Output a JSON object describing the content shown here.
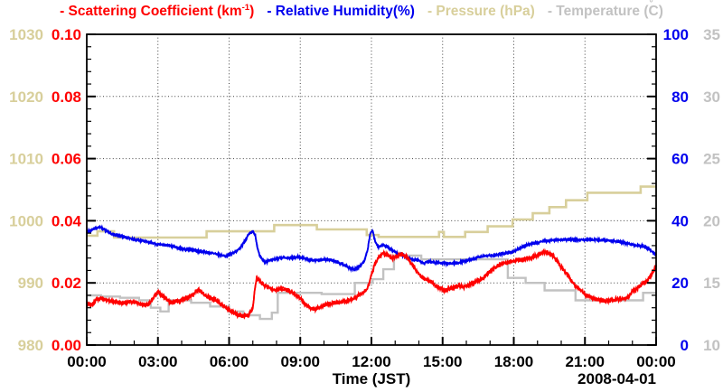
{
  "legend": {
    "scattering": {
      "pre": "- Scattering Coefficient (km",
      "sup": "-1",
      "post": ")"
    },
    "humidity": {
      "label": "- Relative Humidity(%)"
    },
    "pressure": {
      "label": "- Pressure (hPa)"
    },
    "temperature": {
      "pre": "- Temperature (",
      "ring": "°",
      "c": "C",
      "post": ")"
    }
  },
  "chart_data": {
    "type": "line",
    "title": "",
    "x_axis": {
      "label": "Time (JST)",
      "date_label": "2008-04-01",
      "min_hours": 0,
      "max_hours": 24,
      "major_tick_hours": 3,
      "minor_tick_hours": 1,
      "tick_labels": [
        "00:00",
        "03:00",
        "06:00",
        "09:00",
        "12:00",
        "15:00",
        "18:00",
        "21:00",
        "00:00"
      ]
    },
    "grid": {
      "dotted": true,
      "color": "#444444"
    },
    "y_axes": [
      {
        "id": "pressure",
        "label": "Pressure (hPa)",
        "color": "#d8cf9b",
        "min": 980,
        "max": 1030,
        "major_tick": 10,
        "minors_per_major": 4,
        "side": "left-outer",
        "tick_labels": [
          "980",
          "990",
          "1000",
          "1010",
          "1020",
          "1030"
        ]
      },
      {
        "id": "scattering",
        "label": "Scattering Coefficient (km-1)",
        "color": "#ff0000",
        "min": 0,
        "max": 0.1,
        "major_tick": 0.02,
        "minors_per_major": 4,
        "side": "left-inner",
        "tick_labels": [
          "0.00",
          "0.02",
          "0.04",
          "0.06",
          "0.08",
          "0.10"
        ]
      },
      {
        "id": "humidity",
        "label": "Relative Humidity(%)",
        "color": "#0000ee",
        "min": 0,
        "max": 100,
        "major_tick": 20,
        "minors_per_major": 4,
        "side": "right-inner",
        "tick_labels": [
          "0",
          "20",
          "40",
          "60",
          "80",
          "100"
        ]
      },
      {
        "id": "temperature",
        "label": "Temperature (C)",
        "color": "#c2c2c2",
        "min": 10,
        "max": 35,
        "major_tick": 5,
        "minors_per_major": 4,
        "side": "right-outer",
        "tick_labels": [
          "10",
          "15",
          "20",
          "25",
          "30",
          "35"
        ]
      }
    ],
    "series": [
      {
        "name": "Temperature",
        "axis": "temperature",
        "color": "#c2c2c2",
        "style": "step",
        "width": 2.4,
        "points": [
          [
            0,
            14.0
          ],
          [
            0.6,
            13.9
          ],
          [
            1.4,
            13.8
          ],
          [
            2.2,
            13.6
          ],
          [
            2.7,
            13.0
          ],
          [
            3.1,
            12.7
          ],
          [
            3.45,
            13.6
          ],
          [
            4.4,
            13.4
          ],
          [
            5.2,
            13.1
          ],
          [
            6.0,
            12.7
          ],
          [
            6.6,
            12.4
          ],
          [
            7.3,
            12.1
          ],
          [
            7.8,
            12.6
          ],
          [
            8.05,
            14.2
          ],
          [
            9.0,
            14.2
          ],
          [
            9.9,
            14.1
          ],
          [
            11.3,
            15.0
          ],
          [
            12.05,
            15.3
          ],
          [
            12.5,
            16.1
          ],
          [
            12.95,
            17.2
          ],
          [
            14.1,
            16.9
          ],
          [
            15.1,
            16.9
          ],
          [
            17.75,
            15.4
          ],
          [
            18.5,
            15.0
          ],
          [
            19.3,
            14.4
          ],
          [
            20.6,
            13.6
          ],
          [
            23.3,
            13.6
          ],
          [
            23.45,
            14.2
          ],
          [
            24,
            14.2
          ]
        ]
      },
      {
        "name": "Pressure",
        "axis": "pressure",
        "color": "#d8cf9b",
        "style": "step",
        "width": 2.6,
        "points": [
          [
            0,
            997.6
          ],
          [
            0.45,
            998.3
          ],
          [
            1.15,
            997.3
          ],
          [
            5.05,
            998.3
          ],
          [
            7.9,
            999.3
          ],
          [
            9.7,
            998.6
          ],
          [
            11.8,
            997.7
          ],
          [
            12.3,
            997.4
          ],
          [
            14.85,
            998.2
          ],
          [
            15.05,
            997.4
          ],
          [
            15.95,
            998.2
          ],
          [
            16.9,
            999.1
          ],
          [
            17.95,
            1000.2
          ],
          [
            18.8,
            1001.2
          ],
          [
            19.5,
            1002.2
          ],
          [
            20.2,
            1003.3
          ],
          [
            21.1,
            1004.5
          ],
          [
            23.35,
            1005.5
          ],
          [
            24,
            1005.5
          ]
        ]
      },
      {
        "name": "Relative Humidity",
        "axis": "humidity",
        "color": "#0000ee",
        "style": "noisy",
        "width": 1.7,
        "noise_amp": 0.5,
        "points": [
          [
            0,
            36.3
          ],
          [
            0.2,
            37.0
          ],
          [
            0.4,
            37.6
          ],
          [
            0.6,
            38.0
          ],
          [
            0.8,
            36.8
          ],
          [
            1.0,
            36.0
          ],
          [
            1.3,
            35.3
          ],
          [
            1.6,
            34.8
          ],
          [
            2.0,
            34.0
          ],
          [
            2.4,
            33.5
          ],
          [
            2.8,
            32.7
          ],
          [
            3.0,
            32.3
          ],
          [
            3.3,
            32.2
          ],
          [
            3.6,
            31.8
          ],
          [
            4.0,
            31.0
          ],
          [
            4.4,
            30.6
          ],
          [
            4.8,
            30.1
          ],
          [
            5.1,
            29.8
          ],
          [
            5.4,
            29.4
          ],
          [
            5.7,
            28.8
          ],
          [
            5.9,
            28.6
          ],
          [
            6.1,
            29.4
          ],
          [
            6.3,
            30.2
          ],
          [
            6.5,
            31.5
          ],
          [
            6.7,
            34.0
          ],
          [
            6.85,
            36.0
          ],
          [
            7.0,
            36.6
          ],
          [
            7.1,
            35.5
          ],
          [
            7.2,
            31.0
          ],
          [
            7.3,
            28.7
          ],
          [
            7.5,
            26.6
          ],
          [
            7.7,
            27.2
          ],
          [
            8.0,
            27.7
          ],
          [
            8.3,
            28.3
          ],
          [
            8.6,
            27.9
          ],
          [
            8.9,
            28.4
          ],
          [
            9.1,
            28.0
          ],
          [
            9.4,
            27.5
          ],
          [
            9.7,
            27.2
          ],
          [
            10.0,
            27.6
          ],
          [
            10.3,
            27.3
          ],
          [
            10.6,
            26.6
          ],
          [
            10.9,
            25.5
          ],
          [
            11.1,
            24.8
          ],
          [
            11.3,
            24.4
          ],
          [
            11.5,
            25.2
          ],
          [
            11.7,
            27.0
          ],
          [
            11.85,
            31.0
          ],
          [
            11.95,
            36.0
          ],
          [
            12.05,
            36.8
          ],
          [
            12.15,
            33.5
          ],
          [
            12.3,
            31.6
          ],
          [
            12.5,
            32.3
          ],
          [
            12.7,
            31.6
          ],
          [
            12.9,
            30.4
          ],
          [
            13.1,
            29.4
          ],
          [
            13.4,
            28.7
          ],
          [
            13.7,
            27.6
          ],
          [
            14.0,
            27.3
          ],
          [
            14.2,
            26.3
          ],
          [
            14.4,
            26.9
          ],
          [
            14.7,
            26.6
          ],
          [
            15.0,
            26.4
          ],
          [
            15.3,
            26.2
          ],
          [
            15.6,
            26.5
          ],
          [
            15.9,
            26.9
          ],
          [
            16.2,
            27.5
          ],
          [
            16.5,
            28.3
          ],
          [
            16.8,
            28.7
          ],
          [
            17.1,
            28.8
          ],
          [
            17.4,
            29.2
          ],
          [
            17.7,
            29.6
          ],
          [
            18.0,
            30.1
          ],
          [
            18.3,
            31.4
          ],
          [
            18.6,
            32.3
          ],
          [
            18.9,
            32.9
          ],
          [
            19.2,
            33.4
          ],
          [
            19.5,
            33.6
          ],
          [
            19.8,
            33.8
          ],
          [
            20.1,
            33.9
          ],
          [
            20.4,
            34.0
          ],
          [
            20.7,
            33.8
          ],
          [
            21.0,
            33.9
          ],
          [
            21.3,
            34.0
          ],
          [
            21.6,
            33.8
          ],
          [
            21.9,
            33.7
          ],
          [
            22.2,
            33.5
          ],
          [
            22.5,
            33.2
          ],
          [
            22.8,
            32.6
          ],
          [
            23.1,
            32.1
          ],
          [
            23.4,
            31.8
          ],
          [
            23.6,
            31.3
          ],
          [
            23.8,
            30.2
          ],
          [
            24,
            29.1
          ]
        ]
      },
      {
        "name": "Scattering Coefficient",
        "axis": "scattering",
        "color": "#ff0000",
        "style": "noisy",
        "width": 1.7,
        "noise_amp": 0.0008,
        "points": [
          [
            0,
            0.0135
          ],
          [
            0.2,
            0.0128
          ],
          [
            0.4,
            0.0145
          ],
          [
            0.6,
            0.015
          ],
          [
            0.8,
            0.0146
          ],
          [
            1.0,
            0.0142
          ],
          [
            1.2,
            0.0138
          ],
          [
            1.4,
            0.0134
          ],
          [
            1.6,
            0.0136
          ],
          [
            1.8,
            0.014
          ],
          [
            2.0,
            0.0138
          ],
          [
            2.2,
            0.0133
          ],
          [
            2.4,
            0.013
          ],
          [
            2.6,
            0.0132
          ],
          [
            2.8,
            0.015
          ],
          [
            3.0,
            0.017
          ],
          [
            3.1,
            0.0165
          ],
          [
            3.3,
            0.015
          ],
          [
            3.5,
            0.0138
          ],
          [
            3.7,
            0.014
          ],
          [
            3.9,
            0.0142
          ],
          [
            4.1,
            0.0148
          ],
          [
            4.3,
            0.0155
          ],
          [
            4.5,
            0.0165
          ],
          [
            4.7,
            0.0178
          ],
          [
            4.85,
            0.017
          ],
          [
            5.0,
            0.016
          ],
          [
            5.2,
            0.0152
          ],
          [
            5.4,
            0.0148
          ],
          [
            5.6,
            0.0135
          ],
          [
            5.8,
            0.0125
          ],
          [
            6.0,
            0.0112
          ],
          [
            6.2,
            0.0102
          ],
          [
            6.4,
            0.0097
          ],
          [
            6.6,
            0.0094
          ],
          [
            6.8,
            0.0095
          ],
          [
            7.0,
            0.012
          ],
          [
            7.1,
            0.019
          ],
          [
            7.17,
            0.0218
          ],
          [
            7.25,
            0.021
          ],
          [
            7.4,
            0.0196
          ],
          [
            7.6,
            0.0188
          ],
          [
            7.8,
            0.018
          ],
          [
            8.0,
            0.0177
          ],
          [
            8.2,
            0.018
          ],
          [
            8.4,
            0.0178
          ],
          [
            8.6,
            0.0172
          ],
          [
            8.8,
            0.0162
          ],
          [
            9.0,
            0.015
          ],
          [
            9.2,
            0.0132
          ],
          [
            9.4,
            0.012
          ],
          [
            9.6,
            0.0115
          ],
          [
            9.8,
            0.012
          ],
          [
            10.0,
            0.0128
          ],
          [
            10.3,
            0.0133
          ],
          [
            10.6,
            0.0138
          ],
          [
            10.9,
            0.014
          ],
          [
            11.2,
            0.0148
          ],
          [
            11.5,
            0.0163
          ],
          [
            11.7,
            0.0172
          ],
          [
            11.85,
            0.0185
          ],
          [
            12.0,
            0.0225
          ],
          [
            12.15,
            0.0262
          ],
          [
            12.3,
            0.0282
          ],
          [
            12.5,
            0.0295
          ],
          [
            12.7,
            0.0288
          ],
          [
            12.9,
            0.028
          ],
          [
            13.1,
            0.0287
          ],
          [
            13.3,
            0.0292
          ],
          [
            13.5,
            0.0282
          ],
          [
            13.7,
            0.0262
          ],
          [
            13.9,
            0.0237
          ],
          [
            14.1,
            0.0222
          ],
          [
            14.3,
            0.0212
          ],
          [
            14.5,
            0.0206
          ],
          [
            14.7,
            0.0193
          ],
          [
            14.9,
            0.0183
          ],
          [
            15.1,
            0.0176
          ],
          [
            15.3,
            0.018
          ],
          [
            15.5,
            0.0186
          ],
          [
            15.7,
            0.019
          ],
          [
            15.9,
            0.0187
          ],
          [
            16.1,
            0.0192
          ],
          [
            16.4,
            0.0203
          ],
          [
            16.7,
            0.0216
          ],
          [
            17.0,
            0.0238
          ],
          [
            17.2,
            0.025
          ],
          [
            17.5,
            0.026
          ],
          [
            17.8,
            0.0267
          ],
          [
            18.1,
            0.0272
          ],
          [
            18.4,
            0.0275
          ],
          [
            18.7,
            0.028
          ],
          [
            19.0,
            0.029
          ],
          [
            19.2,
            0.0298
          ],
          [
            19.35,
            0.03
          ],
          [
            19.5,
            0.0295
          ],
          [
            19.7,
            0.0285
          ],
          [
            19.9,
            0.0262
          ],
          [
            20.1,
            0.024
          ],
          [
            20.3,
            0.0222
          ],
          [
            20.5,
            0.02
          ],
          [
            20.7,
            0.0183
          ],
          [
            21.0,
            0.0163
          ],
          [
            21.3,
            0.0152
          ],
          [
            21.6,
            0.0146
          ],
          [
            21.9,
            0.0142
          ],
          [
            22.2,
            0.0145
          ],
          [
            22.5,
            0.0148
          ],
          [
            22.8,
            0.0152
          ],
          [
            23.0,
            0.0172
          ],
          [
            23.2,
            0.0182
          ],
          [
            23.4,
            0.0196
          ],
          [
            23.6,
            0.0205
          ],
          [
            23.8,
            0.0225
          ],
          [
            23.95,
            0.0248
          ],
          [
            24,
            0.0255
          ]
        ]
      }
    ]
  }
}
